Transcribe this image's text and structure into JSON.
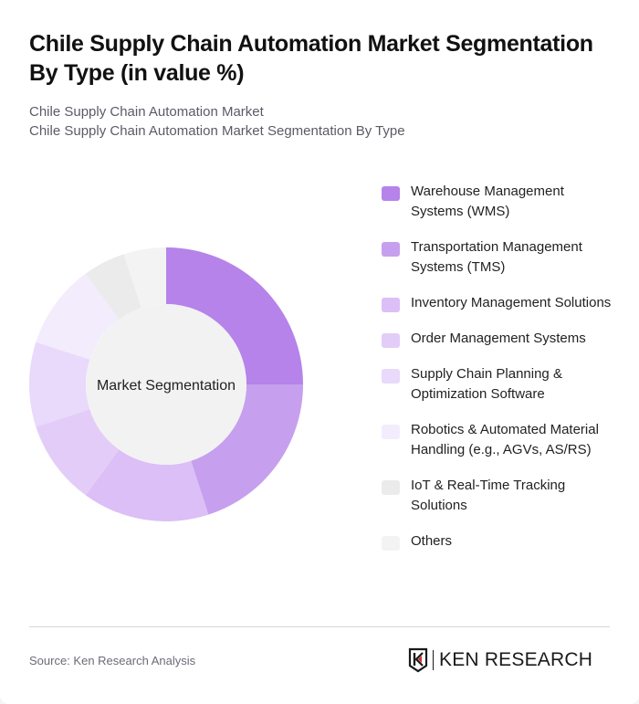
{
  "header": {
    "title": "Chile Supply Chain Automation Market Segmentation By Type (in value %)",
    "subtitle_1": "Chile Supply Chain Automation Market",
    "subtitle_2": "Chile Supply Chain Automation Market Segmentation By Type"
  },
  "chart": {
    "center_label": "Market Segmentation",
    "center_color": "#f2f2f2"
  },
  "legend": {
    "items": [
      {
        "label": "Warehouse Management Systems (WMS)",
        "color": "#b583ea"
      },
      {
        "label": "Transportation Management Systems (TMS)",
        "color": "#c6a0ee"
      },
      {
        "label": "Inventory Management Solutions",
        "color": "#dbbff6"
      },
      {
        "label": "Order Management Systems",
        "color": "#e3cdf8"
      },
      {
        "label": "Supply Chain Planning & Optimization Software",
        "color": "#e9d9fa"
      },
      {
        "label": "Robotics & Automated Material Handling (e.g., AGVs, AS/RS)",
        "color": "#f3ecfc"
      },
      {
        "label": "IoT & Real-Time Tracking Solutions",
        "color": "#ebebeb"
      },
      {
        "label": "Others",
        "color": "#f3f3f3"
      }
    ]
  },
  "footer": {
    "source": "Source: Ken Research Analysis",
    "logo_text": "KEN RESEARCH",
    "logo_accent": "#d32f2f"
  },
  "chart_data": {
    "type": "pie",
    "title": "Chile Supply Chain Automation Market Segmentation By Type (in value %)",
    "subtitle": "Chile Supply Chain Automation Market Segmentation By Type",
    "center_label": "Market Segmentation",
    "donut": true,
    "categories": [
      "Warehouse Management Systems (WMS)",
      "Transportation Management Systems (TMS)",
      "Inventory Management Solutions",
      "Order Management Systems",
      "Supply Chain Planning & Optimization Software",
      "Robotics & Automated Material Handling (e.g., AGVs, AS/RS)",
      "IoT & Real-Time Tracking Solutions",
      "Others"
    ],
    "values": [
      25,
      20,
      15,
      10,
      10,
      10,
      5,
      5
    ],
    "colors": [
      "#b583ea",
      "#c6a0ee",
      "#dbbff6",
      "#e3cdf8",
      "#e9d9fa",
      "#f3ecfc",
      "#ebebeb",
      "#f3f3f3"
    ],
    "legend_position": "right",
    "unit": "%"
  }
}
